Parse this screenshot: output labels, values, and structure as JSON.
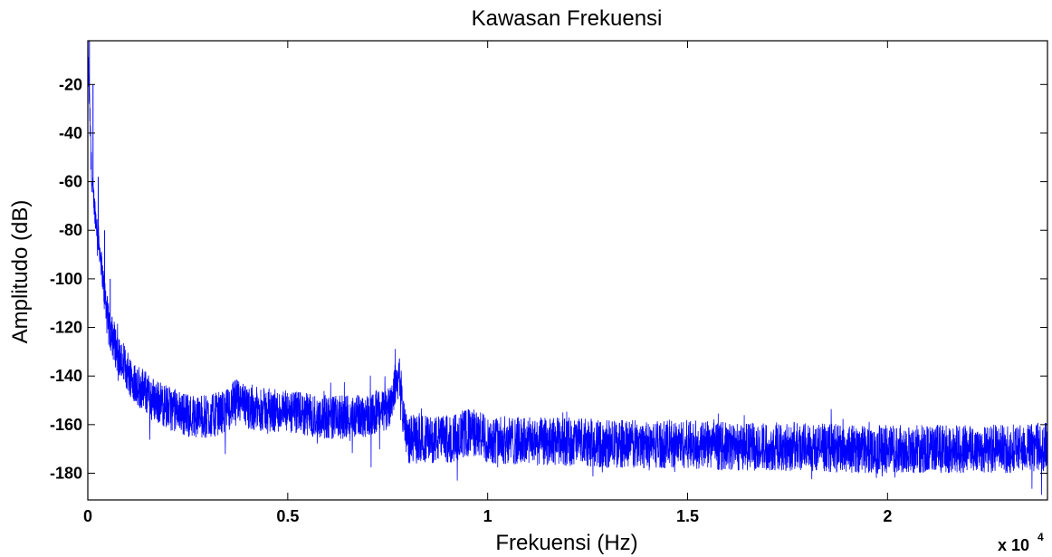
{
  "chart_data": {
    "type": "line",
    "title": "Kawasan Frekuensi",
    "xlabel": "Frekuensi (Hz)",
    "ylabel": "Amplitudo (dB)",
    "x_multiplier_base": "x 10",
    "x_multiplier_exp": "4",
    "xlim": [
      0,
      24000
    ],
    "ylim": [
      -191,
      -2
    ],
    "xticks": [
      0,
      5000,
      10000,
      15000,
      20000
    ],
    "xtick_labels": [
      "0",
      "0.5",
      "1",
      "1.5",
      "2"
    ],
    "yticks": [
      -20,
      -40,
      -60,
      -80,
      -100,
      -120,
      -140,
      -160,
      -180
    ],
    "ytick_labels": [
      "-20",
      "-40",
      "-60",
      "-80",
      "-100",
      "-120",
      "-140",
      "-160",
      "-180"
    ],
    "grid": false,
    "line_color": "#0000ff",
    "series": [
      {
        "x": [
          0,
          100,
          200,
          300,
          500,
          800,
          1200,
          1600,
          2000,
          2500,
          3000,
          3500,
          3700,
          4000,
          4500,
          5000,
          5500,
          6000,
          6500,
          7000,
          7500,
          7700,
          7800,
          7900,
          8000,
          9000,
          9600,
          10000,
          11000,
          12000,
          13000,
          14000,
          15000,
          16000,
          17000,
          18000,
          19000,
          20000,
          21000,
          22000,
          23000,
          24000
        ],
        "y": [
          -5,
          -60,
          -75,
          -88,
          -118,
          -133,
          -143,
          -149,
          -153,
          -156,
          -157,
          -154,
          -150,
          -153,
          -154,
          -155,
          -156,
          -157,
          -157,
          -156,
          -154,
          -143,
          -140,
          -158,
          -166,
          -166,
          -163,
          -166,
          -167,
          -167,
          -168,
          -168,
          -168,
          -169,
          -169,
          -169,
          -170,
          -170,
          -170,
          -170,
          -170,
          -169
        ]
      }
    ]
  }
}
